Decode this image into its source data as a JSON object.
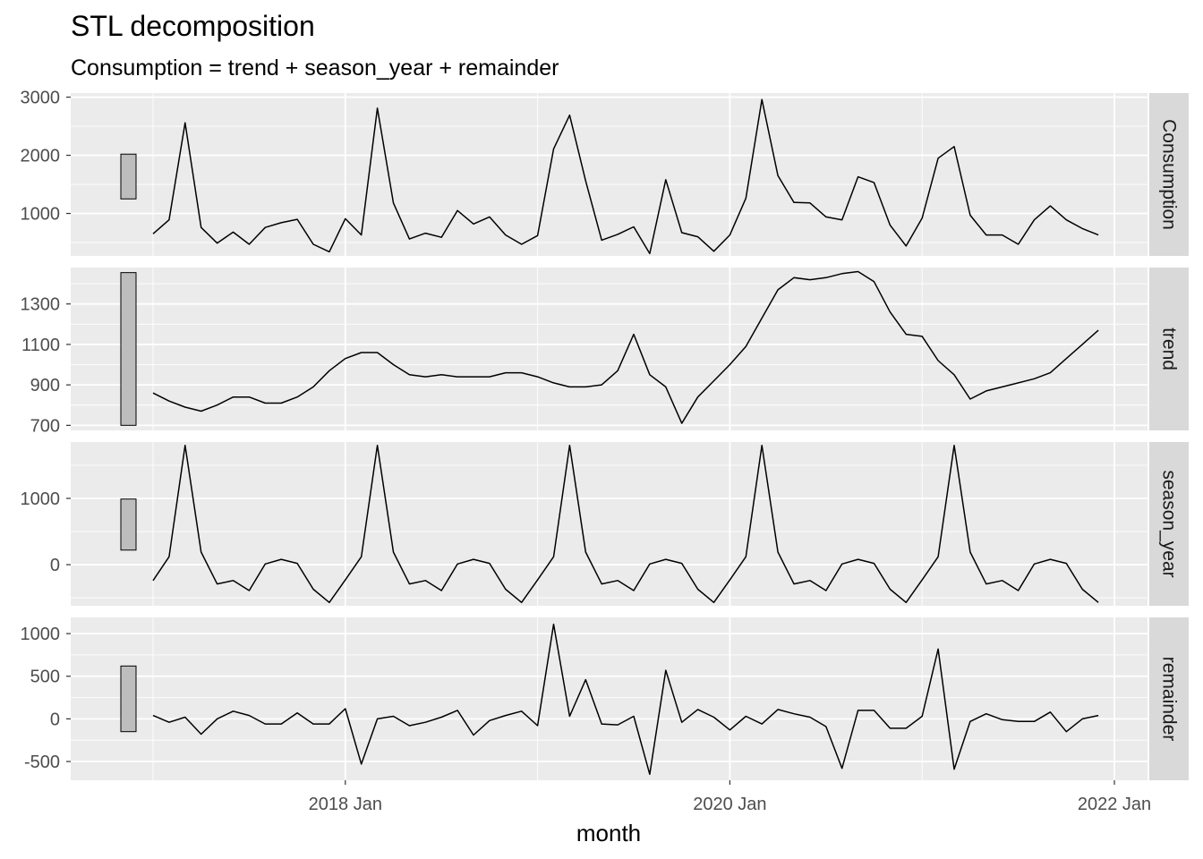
{
  "chart_data": {
    "type": "line",
    "title": "STL decomposition",
    "subtitle": "Consumption = trend + season_year + remainder",
    "xlabel": "month",
    "x_ticks": [
      "2018 Jan",
      "2020 Jan",
      "2022 Jan"
    ],
    "x_start": "2017 Jan",
    "x_end": "2021 Dec",
    "grid": true,
    "colors": {
      "panel_bg": "#ebebeb",
      "grid": "#ffffff",
      "strip_bg": "#d9d9d9",
      "line": "#000000",
      "scale_bar": "#bdbdbd"
    },
    "panels": [
      {
        "name": "Consumption",
        "ylim": [
          270,
          3070
        ],
        "yticks": [
          1000,
          2000,
          3000
        ],
        "ytick_labels": [
          "1000",
          "2000",
          "3000"
        ],
        "scale_bar": [
          1250,
          2020
        ],
        "values": [
          650,
          890,
          2560,
          760,
          490,
          680,
          470,
          760,
          840,
          900,
          470,
          340,
          910,
          630,
          2810,
          1180,
          560,
          660,
          590,
          1050,
          820,
          940,
          630,
          470,
          620,
          2110,
          2690,
          1560,
          540,
          640,
          770,
          310,
          1580,
          670,
          600,
          350,
          630,
          1260,
          2960,
          1650,
          1190,
          1180,
          940,
          890,
          1630,
          1530,
          800,
          440,
          920,
          1950,
          2150,
          970,
          630,
          630,
          470,
          890,
          1130,
          890,
          740,
          630
        ]
      },
      {
        "name": "trend",
        "ylim": [
          675,
          1480
        ],
        "yticks": [
          700,
          900,
          1100,
          1300
        ],
        "ytick_labels": [
          "700",
          "900",
          "1100",
          "1300"
        ],
        "scale_bar": [
          700,
          1455
        ],
        "values": [
          860,
          820,
          790,
          770,
          800,
          840,
          840,
          810,
          810,
          840,
          890,
          970,
          1030,
          1060,
          1060,
          1000,
          950,
          940,
          950,
          940,
          940,
          940,
          960,
          960,
          940,
          910,
          890,
          890,
          900,
          970,
          1150,
          950,
          890,
          710,
          840,
          920,
          1000,
          1090,
          1230,
          1370,
          1430,
          1420,
          1430,
          1450,
          1460,
          1410,
          1260,
          1150,
          1140,
          1020,
          950,
          830,
          870,
          890,
          910,
          930,
          960,
          1030,
          1100,
          1170
        ]
      },
      {
        "name": "season_year",
        "ylim": [
          -620,
          1850
        ],
        "yticks": [
          0,
          1000
        ],
        "ytick_labels": [
          "0",
          "1000"
        ],
        "scale_bar": [
          220,
          990
        ],
        "values": [
          -240,
          120,
          1800,
          190,
          -290,
          -240,
          -390,
          10,
          80,
          20,
          -370,
          -570,
          -230,
          120,
          1800,
          190,
          -290,
          -240,
          -390,
          10,
          80,
          20,
          -370,
          -570,
          -230,
          120,
          1800,
          190,
          -290,
          -240,
          -390,
          10,
          80,
          20,
          -370,
          -570,
          -230,
          120,
          1800,
          190,
          -290,
          -240,
          -390,
          10,
          80,
          20,
          -370,
          -570,
          -230,
          120,
          1800,
          190,
          -290,
          -240,
          -390,
          10,
          80,
          20,
          -370,
          -570
        ]
      },
      {
        "name": "remainder",
        "ylim": [
          -720,
          1190
        ],
        "yticks": [
          -500,
          0,
          500,
          1000
        ],
        "ytick_labels": [
          "-500",
          "0",
          "500",
          "1000"
        ],
        "scale_bar": [
          -150,
          620
        ],
        "values": [
          40,
          -40,
          20,
          -180,
          0,
          90,
          40,
          -60,
          -60,
          70,
          -60,
          -60,
          120,
          -530,
          0,
          30,
          -80,
          -40,
          20,
          100,
          -190,
          -20,
          40,
          90,
          -80,
          1110,
          30,
          460,
          -60,
          -70,
          30,
          -650,
          570,
          -40,
          110,
          20,
          -130,
          30,
          -60,
          110,
          60,
          20,
          -90,
          -580,
          100,
          100,
          -110,
          -110,
          30,
          820,
          -590,
          -30,
          60,
          -10,
          -30,
          -30,
          80,
          -150,
          0,
          40
        ]
      }
    ]
  }
}
